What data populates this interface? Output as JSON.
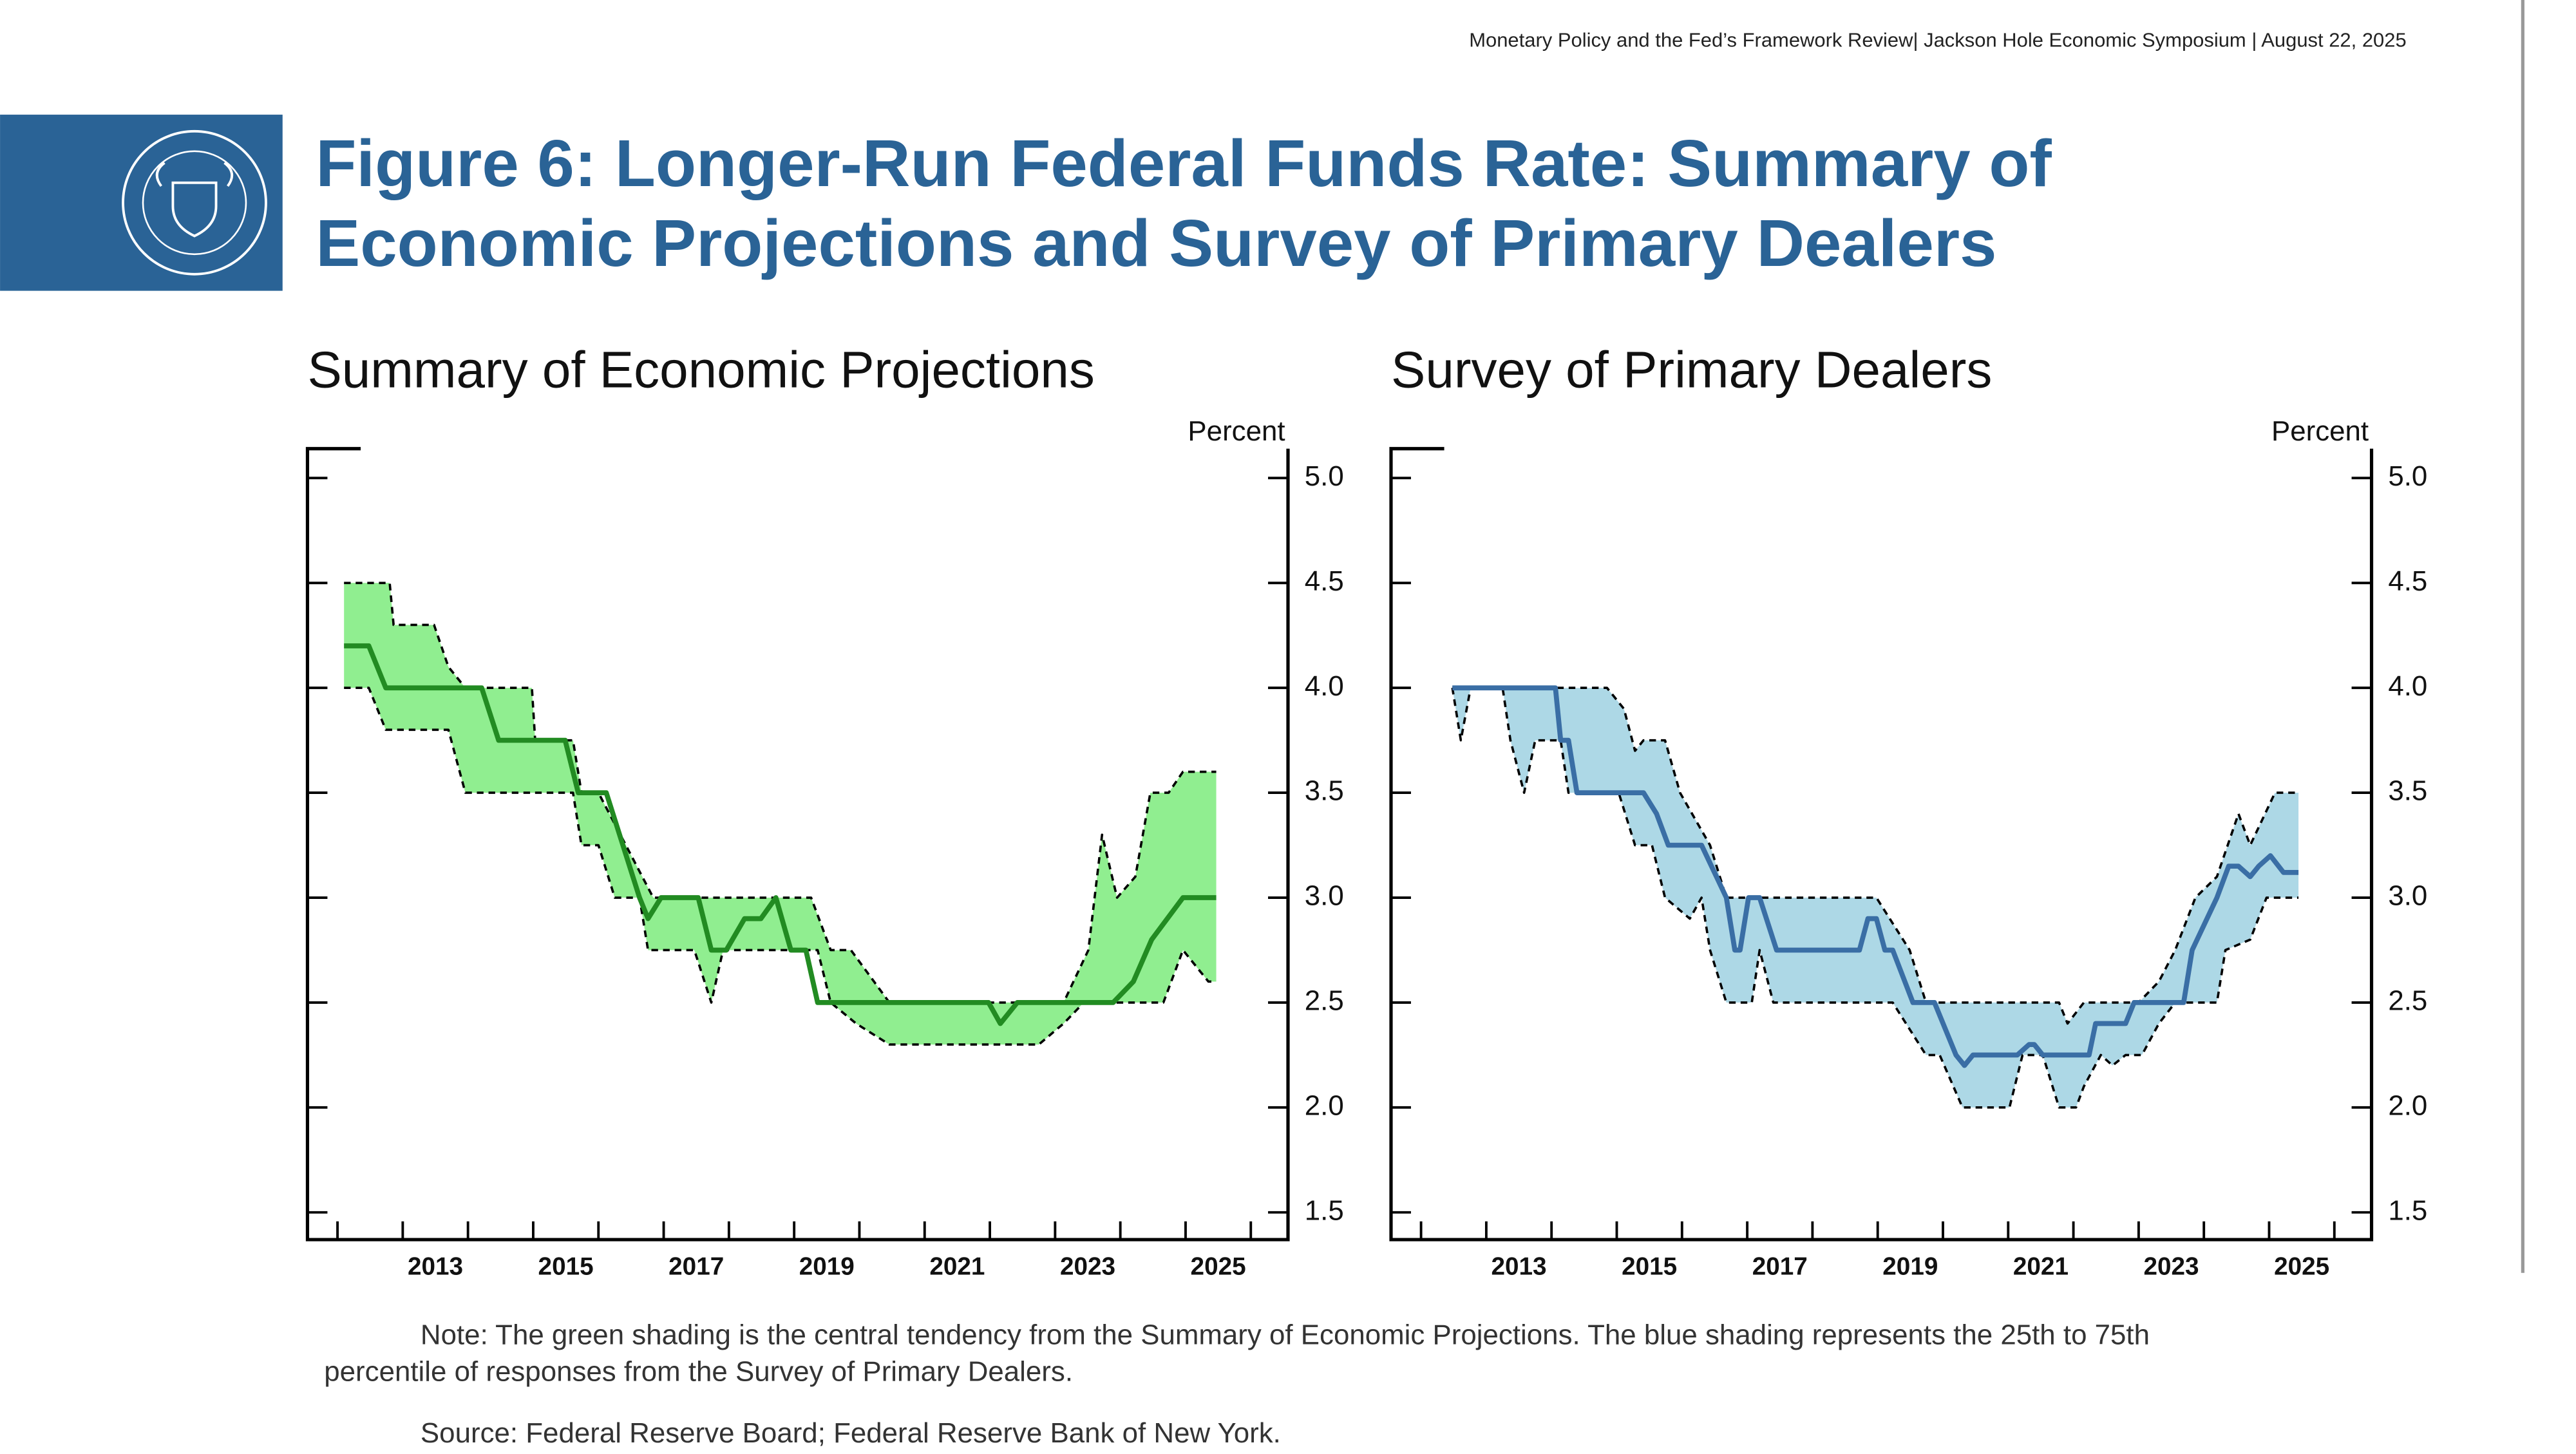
{
  "header": {
    "text": "Monetary Policy and the Fed’s Framework Review| Jackson Hole Economic Symposium | August 22, 2025",
    "title": [
      "Figure 6: Longer-Run Federal Funds Rate: Summary of",
      "Economic Projections and Survey of Primary Dealers"
    ]
  },
  "chart_data": [
    {
      "type": "band",
      "title": "Summary of Economic Projections",
      "y_label": "Percent",
      "band_color": "#90ee90",
      "xlim": [
        2011.04,
        2026.07
      ],
      "xticks": [
        2013,
        2015,
        2017,
        2019,
        2021,
        2023,
        2025
      ],
      "xminor": [
        2011.5,
        2012.5,
        2013.5,
        2014.5,
        2015.5,
        2016.5,
        2017.5,
        2018.5,
        2019.5,
        2020.5,
        2021.5,
        2022.5,
        2023.5,
        2024.5,
        2025.5
      ],
      "ylim": [
        1.37,
        5.14
      ],
      "yticks": [
        1.5,
        {
          "value": 2,
          "label": "2.0"
        },
        2.5,
        {
          "value": 3,
          "label": "3.0"
        },
        3.5,
        {
          "value": 4,
          "label": "4.0"
        },
        4.5,
        {
          "value": 5,
          "label": "5.0"
        }
      ],
      "series": [
        {
          "color": "#000000",
          "dash": true,
          "x": [
            2011.6,
            2012.3,
            2012.36,
            2012.98,
            2013.2,
            2013.46,
            2014.48,
            2014.53,
            2015.11,
            2015.24,
            2015.5,
            2016.34,
            2018.76,
            2019.06,
            2019.37,
            2019.96,
            2022.63,
            2023.01,
            2023.22,
            2023.45,
            2023.73,
            2023.96,
            2024.24,
            2024.46,
            2024.97
          ],
          "values": [
            4.5,
            4.5,
            4.3,
            4.3,
            4.1,
            4.0,
            4.0,
            3.75,
            3.75,
            3.5,
            3.5,
            3.0,
            3.0,
            2.75,
            2.75,
            2.5,
            2.5,
            2.75,
            3.3,
            3.0,
            3.1,
            3.5,
            3.5,
            3.6,
            3.6
          ]
        },
        {
          "color": "#000000",
          "dash": true,
          "x": [
            2011.6,
            2011.98,
            2012.24,
            2013.2,
            2013.46,
            2015.11,
            2015.24,
            2015.5,
            2015.75,
            2016.13,
            2016.26,
            2016.97,
            2017.23,
            2017.41,
            2018.86,
            2019.06,
            2019.45,
            2019.96,
            2022.25,
            2022.63,
            2022.94,
            2024.16,
            2024.46,
            2024.85,
            2024.97
          ],
          "values": [
            4.0,
            4.0,
            3.8,
            3.8,
            3.5,
            3.5,
            3.25,
            3.25,
            3.0,
            3.0,
            2.75,
            2.75,
            2.5,
            2.75,
            2.75,
            2.5,
            2.4,
            2.3,
            2.3,
            2.4,
            2.5,
            2.5,
            2.75,
            2.6,
            2.6
          ]
        },
        {
          "color": "#228b22",
          "dash": false,
          "x": [
            2011.6,
            2011.98,
            2012.24,
            2013.71,
            2013.97,
            2014.99,
            2015.19,
            2015.62,
            2016.13,
            2016.26,
            2016.46,
            2017.03,
            2017.23,
            2017.46,
            2017.74,
            2017.99,
            2018.22,
            2018.45,
            2018.68,
            2018.86,
            2021.48,
            2021.66,
            2021.92,
            2023.39,
            2023.7,
            2023.98,
            2024.46,
            2024.97
          ],
          "values": [
            4.2,
            4.2,
            4.0,
            4.0,
            3.75,
            3.75,
            3.5,
            3.5,
            3.0,
            2.9,
            3.0,
            3.0,
            2.75,
            2.75,
            2.9,
            2.9,
            3.0,
            2.75,
            2.75,
            2.5,
            2.5,
            2.4,
            2.5,
            2.5,
            2.6,
            2.8,
            3.0,
            3.0
          ]
        }
      ]
    },
    {
      "type": "band",
      "title": "Survey of Primary Dealers",
      "y_label": "Percent",
      "band_color": "#add8e6",
      "xlim": [
        2011.04,
        2026.07
      ],
      "xticks": [
        2013,
        2015,
        2017,
        2019,
        2021,
        2023,
        2025
      ],
      "xminor": [
        2011.5,
        2012.5,
        2013.5,
        2014.5,
        2015.5,
        2016.5,
        2017.5,
        2018.5,
        2019.5,
        2020.5,
        2021.5,
        2022.5,
        2023.5,
        2024.5,
        2025.5
      ],
      "ylim": [
        1.37,
        5.14
      ],
      "yticks": [
        1.5,
        {
          "value": 2,
          "label": "2.0"
        },
        2.5,
        {
          "value": 3,
          "label": "3.0"
        },
        3.5,
        {
          "value": 4,
          "label": "4.0"
        },
        4.5,
        {
          "value": 5,
          "label": "5.0"
        }
      ],
      "series": [
        {
          "color": "#000000",
          "dash": true,
          "x": [
            2011.98,
            2014.35,
            2014.61,
            2014.78,
            2014.91,
            2015.24,
            2015.47,
            2015.93,
            2016.18,
            2018.48,
            2018.99,
            2019.24,
            2021.28,
            2021.41,
            2021.66,
            2022.5,
            2022.81,
            2023.06,
            2023.37,
            2023.7,
            2024.03,
            2024.21,
            2024.59,
            2024.95
          ],
          "values": [
            4.0,
            4.0,
            3.9,
            3.7,
            3.75,
            3.75,
            3.5,
            3.25,
            3.0,
            3.0,
            2.75,
            2.5,
            2.5,
            2.4,
            2.5,
            2.5,
            2.6,
            2.75,
            3.0,
            3.1,
            3.4,
            3.25,
            3.5,
            3.5
          ]
        },
        {
          "color": "#000000",
          "dash": true,
          "x": [
            2011.98,
            2012.11,
            2012.26,
            2012.75,
            2012.87,
            2013.08,
            2013.25,
            2013.64,
            2013.76,
            2014.53,
            2014.78,
            2015.04,
            2015.24,
            2015.62,
            2015.8,
            2015.93,
            2016.18,
            2016.57,
            2016.69,
            2016.9,
            2018.73,
            2019.24,
            2019.45,
            2019.8,
            2020.52,
            2020.72,
            2021.03,
            2021.28,
            2021.54,
            2021.66,
            2021.92,
            2022.1,
            2022.3,
            2022.55,
            2022.81,
            2023.06,
            2023.7,
            2023.83,
            2024.21,
            2024.46,
            2024.95
          ],
          "values": [
            4.0,
            3.75,
            4.0,
            4.0,
            3.75,
            3.5,
            3.75,
            3.75,
            3.5,
            3.5,
            3.25,
            3.25,
            3.0,
            2.9,
            3.0,
            2.75,
            2.5,
            2.5,
            2.75,
            2.5,
            2.5,
            2.25,
            2.25,
            2.0,
            2.0,
            2.25,
            2.25,
            2.0,
            2.0,
            2.1,
            2.25,
            2.2,
            2.25,
            2.25,
            2.4,
            2.5,
            2.5,
            2.75,
            2.8,
            3.0,
            3.0
          ]
        },
        {
          "color": "#3a6ea5",
          "dash": false,
          "x": [
            2011.98,
            2013.56,
            2013.64,
            2013.76,
            2013.89,
            2014.91,
            2015.11,
            2015.29,
            2015.8,
            2016.18,
            2016.31,
            2016.39,
            2016.52,
            2016.69,
            2016.95,
            2018.22,
            2018.35,
            2018.48,
            2018.61,
            2018.73,
            2019.04,
            2019.37,
            2019.7,
            2019.83,
            2019.96,
            2020.64,
            2020.82,
            2020.9,
            2021.03,
            2021.74,
            2021.84,
            2022.3,
            2022.43,
            2023.19,
            2023.32,
            2023.7,
            2023.88,
            2024.03,
            2024.21,
            2024.34,
            2024.52,
            2024.72,
            2024.95
          ],
          "values": [
            4.0,
            4.0,
            3.75,
            3.75,
            3.5,
            3.5,
            3.4,
            3.25,
            3.25,
            3.0,
            2.75,
            2.75,
            3.0,
            3.0,
            2.75,
            2.75,
            2.9,
            2.9,
            2.75,
            2.75,
            2.5,
            2.5,
            2.25,
            2.2,
            2.25,
            2.25,
            2.3,
            2.3,
            2.25,
            2.25,
            2.4,
            2.4,
            2.5,
            2.5,
            2.75,
            3.0,
            3.15,
            3.15,
            3.1,
            3.15,
            3.2,
            3.12,
            3.12
          ]
        }
      ]
    }
  ],
  "footer": {
    "note": [
      "Note: The green shading is the central tendency from the Summary of Economic Projections. The blue shading represents the 25th to 75th",
      "percentile of responses from the Survey of Primary Dealers."
    ],
    "source": "Source: Federal Reserve Board; Federal Reserve Bank of New York."
  }
}
